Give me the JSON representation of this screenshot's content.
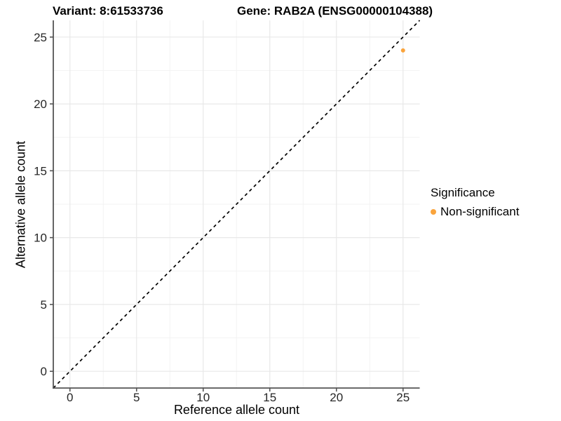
{
  "chart_data": {
    "type": "scatter",
    "title_left": "Variant: 8:61533736",
    "title_right": "Gene: RAB2A (ENSG00000104388)",
    "xlabel": "Reference allele count",
    "ylabel": "Alternative allele count",
    "xlim": [
      -1.25,
      26.25
    ],
    "ylim": [
      -1.25,
      26.25
    ],
    "xticks": [
      0,
      5,
      10,
      15,
      20,
      25
    ],
    "yticks": [
      0,
      5,
      10,
      15,
      20,
      25
    ],
    "minor_xticks": [
      2.5,
      7.5,
      12.5,
      17.5,
      22.5
    ],
    "minor_yticks": [
      2.5,
      7.5,
      12.5,
      17.5,
      22.5
    ],
    "grid": "major+minor",
    "legend_position": "right",
    "reference_line": {
      "type": "identity",
      "slope": 1,
      "intercept": 0,
      "style": "dashed",
      "color": "#000000"
    },
    "series": [
      {
        "name": "Non-significant",
        "color": "#FAA43C",
        "points": [
          {
            "x": 25,
            "y": 24
          }
        ]
      }
    ],
    "legend": {
      "title": "Significance",
      "entries": [
        {
          "label": "Non-significant",
          "color": "#FAA43C"
        }
      ]
    }
  },
  "colors": {
    "background": "#FFFFFF",
    "grid_major": "#E8E8E8",
    "grid_minor": "#F3F3F3",
    "axis_line": "#545454",
    "tick_text": "#262626",
    "point": "#FAA43C"
  }
}
